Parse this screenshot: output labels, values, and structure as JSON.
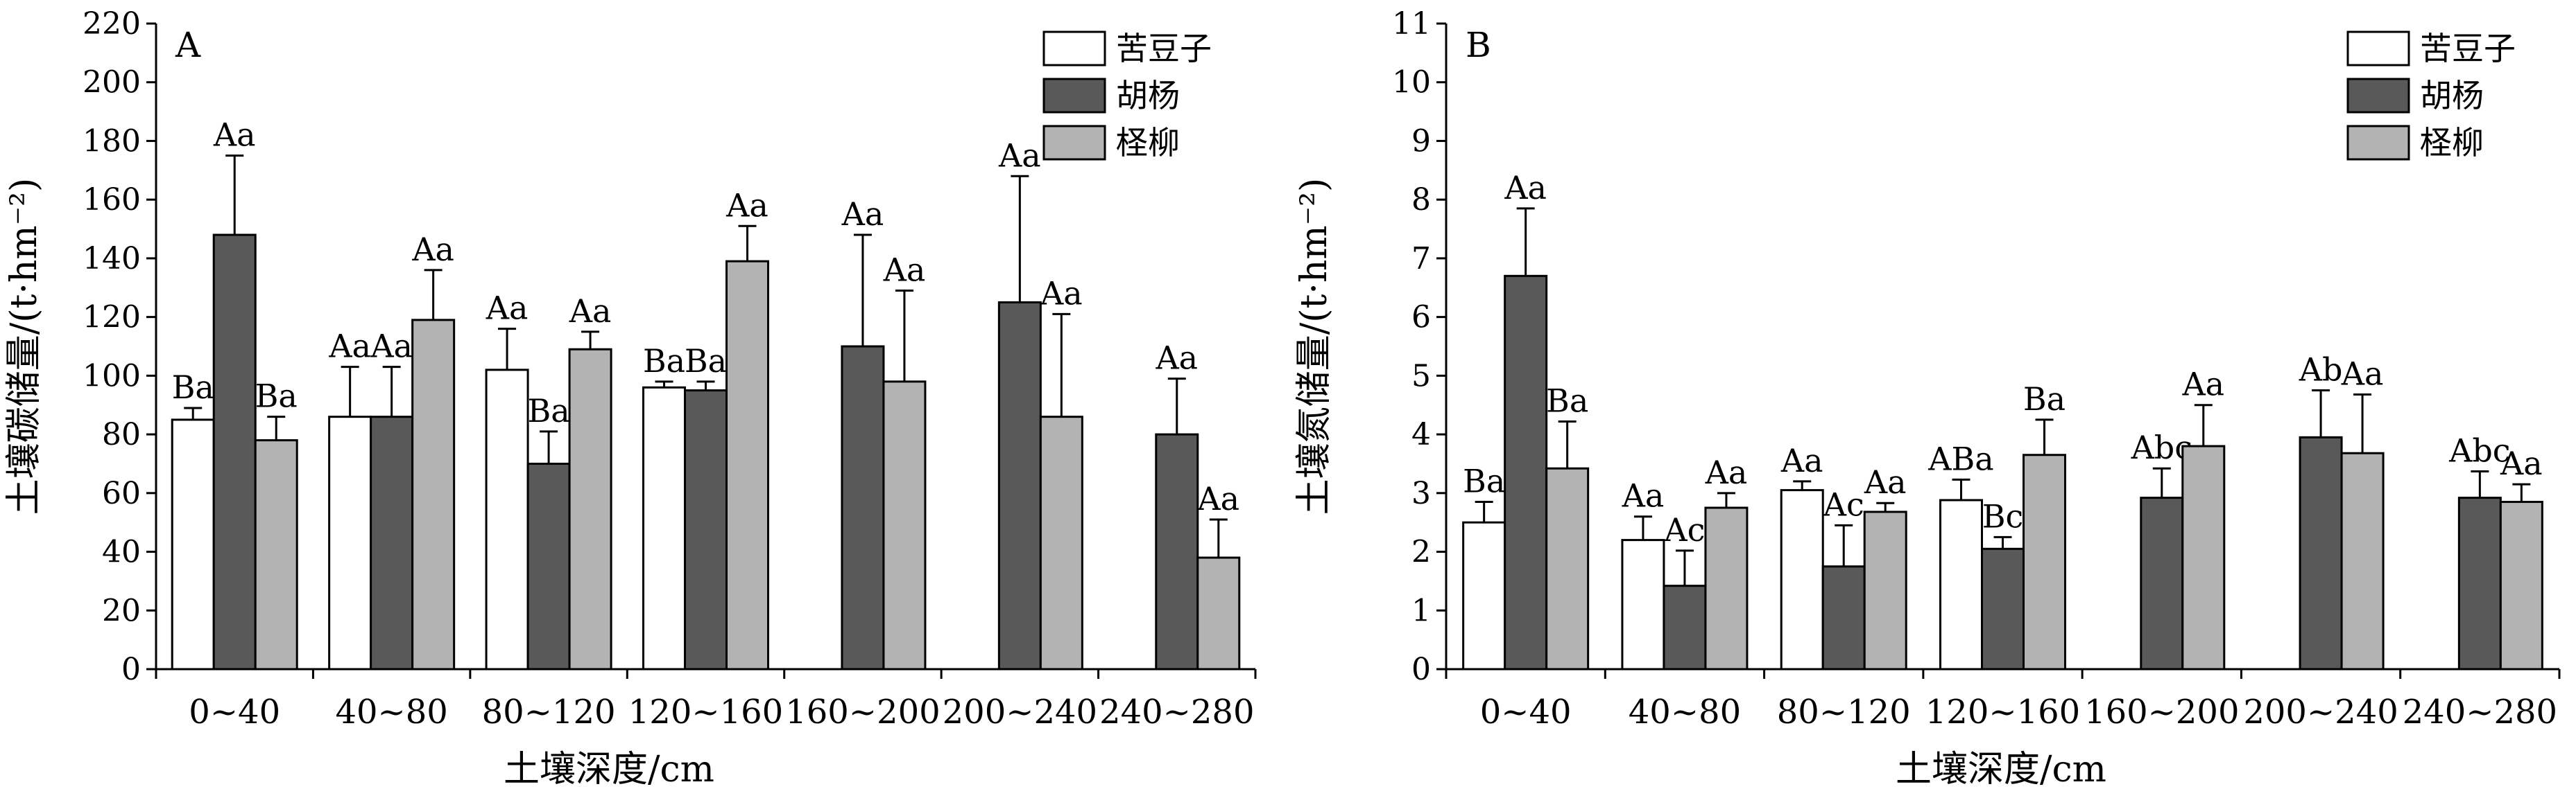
{
  "chart_data": [
    {
      "type": "bar",
      "panel_label": "A",
      "ylabel": "土壤碳储量/(t·hm⁻²)",
      "xlabel": "土壤深度/cm",
      "ylim": [
        0,
        220
      ],
      "yticks": [
        0,
        20,
        40,
        60,
        80,
        100,
        120,
        140,
        160,
        180,
        200,
        220
      ],
      "categories": [
        "0~40",
        "40~80",
        "80~120",
        "120~160",
        "160~200",
        "200~240",
        "240~280"
      ],
      "legend_position": "top-right",
      "series": [
        {
          "name": "苦豆子",
          "color": "#ffffff",
          "values": [
            85,
            86,
            102,
            96,
            null,
            null,
            null
          ],
          "errors": [
            4,
            17,
            14,
            2,
            null,
            null,
            null
          ],
          "labels": [
            "Ba",
            "Aa",
            "Aa",
            "Ba",
            "",
            "",
            ""
          ]
        },
        {
          "name": "胡杨",
          "color": "#595959",
          "values": [
            148,
            86,
            70,
            95,
            110,
            125,
            80
          ],
          "errors": [
            27,
            17,
            11,
            3,
            38,
            43,
            19
          ],
          "labels": [
            "Aa",
            "Aa",
            "Ba",
            "Ba",
            "Aa",
            "Aa",
            "Aa"
          ]
        },
        {
          "name": "柽柳",
          "color": "#b3b3b3",
          "values": [
            78,
            119,
            109,
            139,
            98,
            86,
            38
          ],
          "errors": [
            8,
            17,
            6,
            12,
            31,
            35,
            13
          ],
          "labels": [
            "Ba",
            "Aa",
            "Aa",
            "Aa",
            "Aa",
            "Aa",
            "Aa"
          ]
        }
      ]
    },
    {
      "type": "bar",
      "panel_label": "B",
      "ylabel": "土壤氮储量/(t·hm⁻²)",
      "xlabel": "土壤深度/cm",
      "ylim": [
        0,
        11
      ],
      "yticks": [
        0,
        1,
        2,
        3,
        4,
        5,
        6,
        7,
        8,
        9,
        10,
        11
      ],
      "categories": [
        "0~40",
        "40~80",
        "80~120",
        "120~160",
        "160~200",
        "200~240",
        "240~280"
      ],
      "legend_position": "top-right",
      "series": [
        {
          "name": "苦豆子",
          "color": "#ffffff",
          "values": [
            2.5,
            2.2,
            3.05,
            2.88,
            null,
            null,
            null
          ],
          "errors": [
            0.35,
            0.4,
            0.15,
            0.35,
            null,
            null,
            null
          ],
          "labels": [
            "Ba",
            "Aa",
            "Aa",
            "ABa",
            "",
            "",
            ""
          ]
        },
        {
          "name": "胡杨",
          "color": "#595959",
          "values": [
            6.7,
            1.42,
            1.75,
            2.05,
            2.92,
            3.95,
            2.92
          ],
          "errors": [
            1.15,
            0.6,
            0.7,
            0.2,
            0.5,
            0.8,
            0.45
          ],
          "labels": [
            "Aa",
            "Ac",
            "Ac",
            "Bc",
            "Abc",
            "Ab",
            "Abc"
          ]
        },
        {
          "name": "柽柳",
          "color": "#b3b3b3",
          "values": [
            3.42,
            2.75,
            2.68,
            3.65,
            3.8,
            3.68,
            2.85
          ],
          "errors": [
            0.8,
            0.25,
            0.15,
            0.6,
            0.7,
            1.0,
            0.3
          ],
          "labels": [
            "Ba",
            "Aa",
            "Aa",
            "Ba",
            "Aa",
            "Aa",
            "Aa"
          ]
        }
      ]
    }
  ]
}
